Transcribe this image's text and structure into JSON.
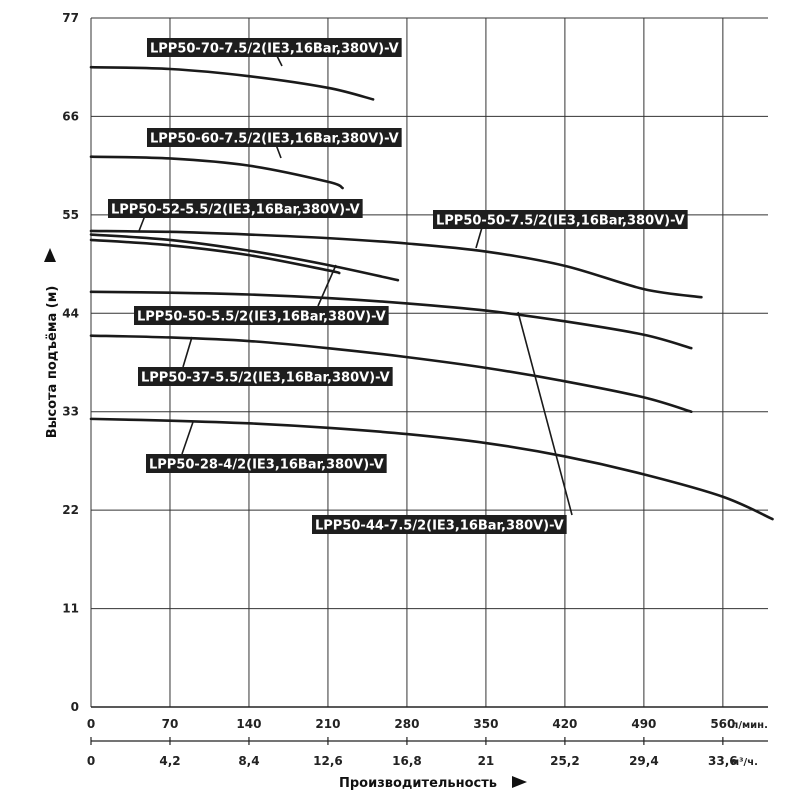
{
  "chart_data": {
    "type": "line",
    "xlabel": "Производительность",
    "ylabel": "Высота подъёма (м)",
    "x_unit": "л/мин.",
    "x2_unit": "м³/ч.",
    "xlim": [
      0,
      600
    ],
    "ylim": [
      0,
      77
    ],
    "yticks": [
      "0",
      "11",
      "22",
      "33",
      "44",
      "55",
      "66",
      "77"
    ],
    "xticks": [
      "0",
      "70",
      "140",
      "210",
      "280",
      "350",
      "420",
      "490",
      "560"
    ],
    "x2ticks": [
      "0",
      "4,2",
      "8,4",
      "12,6",
      "16,8",
      "21",
      "25,2",
      "29,4",
      "33,6"
    ],
    "grid": true,
    "series": [
      {
        "name": "LPP50-70-7.5/2(IE3,16Bar,380V)-V",
        "x": [
          0,
          70,
          140,
          210,
          250
        ],
        "y": [
          71.5,
          71.3,
          70.5,
          69.2,
          67.9
        ]
      },
      {
        "name": "LPP50-60-7.5/2(IE3,16Bar,380V)-V",
        "x": [
          0,
          70,
          140,
          210,
          223
        ],
        "y": [
          61.5,
          61.3,
          60.5,
          58.7,
          58.0
        ]
      },
      {
        "name": "LPP50-52-5.5/2(IE3,16Bar,380V)-V",
        "x": [
          0,
          70,
          140,
          210,
          220
        ],
        "y": [
          52.2,
          51.6,
          50.5,
          48.8,
          48.5
        ]
      },
      {
        "name": "LPP50-50-7.5/2(IE3,16Bar,380V)-V",
        "x": [
          0,
          70,
          140,
          210,
          280,
          350,
          420,
          490,
          541
        ],
        "y": [
          53.2,
          53.1,
          52.8,
          52.4,
          51.8,
          50.9,
          49.3,
          46.7,
          45.8
        ]
      },
      {
        "name": "LPP50-50-5.5/2(IE3,16Bar,380V)-V",
        "x": [
          0,
          70,
          140,
          210,
          272
        ],
        "y": [
          52.8,
          52.2,
          51.0,
          49.4,
          47.7
        ]
      },
      {
        "name": "LPP50-44-7.5/2(IE3,16Bar,380V)-V",
        "x": [
          0,
          70,
          140,
          210,
          280,
          350,
          420,
          490,
          532
        ],
        "y": [
          46.4,
          46.3,
          46.1,
          45.7,
          45.1,
          44.3,
          43.1,
          41.6,
          40.1
        ]
      },
      {
        "name": "LPP50-37-5.5/2(IE3,16Bar,380V)-V",
        "x": [
          0,
          70,
          140,
          210,
          280,
          350,
          420,
          490,
          532
        ],
        "y": [
          41.5,
          41.3,
          40.9,
          40.1,
          39.1,
          37.9,
          36.4,
          34.6,
          33.0
        ]
      },
      {
        "name": "LPP50-28-4/2(IE3,16Bar,380V)-V",
        "x": [
          0,
          70,
          140,
          210,
          280,
          350,
          420,
          490,
          560,
          604
        ],
        "y": [
          32.2,
          32.0,
          31.7,
          31.2,
          30.5,
          29.5,
          28.0,
          26.0,
          23.5,
          21.0
        ]
      }
    ]
  }
}
